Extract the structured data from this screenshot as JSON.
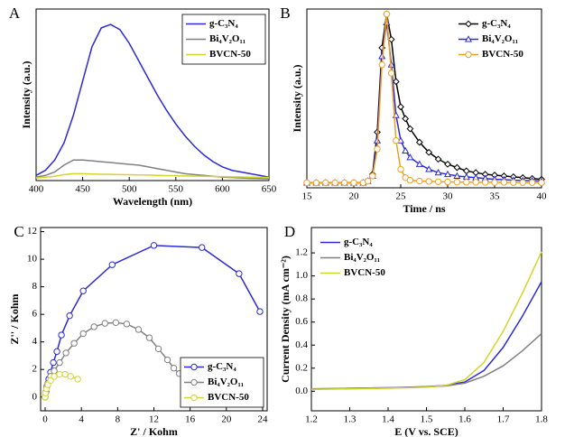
{
  "chart_data": [
    {
      "type": "line",
      "label": "A",
      "xlabel": "Wavelength (nm)",
      "ylabel": "Intensity (a.u.)",
      "xlim": [
        400,
        650
      ],
      "xticks": [
        400,
        450,
        500,
        550,
        600,
        650
      ],
      "ylim": [
        0,
        100
      ],
      "legend": "upper right",
      "legend_frame": true,
      "x": [
        400,
        410,
        420,
        430,
        440,
        450,
        460,
        470,
        480,
        490,
        500,
        510,
        520,
        530,
        540,
        550,
        560,
        570,
        580,
        590,
        600,
        610,
        620,
        630,
        640,
        650
      ],
      "series": [
        {
          "name": "g-C₃N₄",
          "color": "#2a2ad8",
          "values": [
            3,
            6,
            12,
            22,
            38,
            58,
            78,
            89,
            91,
            88,
            80,
            70,
            60,
            50,
            41,
            33,
            26,
            20,
            15,
            11,
            8,
            6,
            5,
            4,
            3,
            2
          ]
        },
        {
          "name": "Bi₄V₂O₁₁",
          "color": "#808080",
          "values": [
            2,
            3,
            5,
            9,
            12,
            12,
            11.5,
            11,
            10.5,
            10,
            9.5,
            9,
            8,
            7,
            6,
            5,
            4,
            3.5,
            3,
            2.5,
            2,
            1.8,
            1.5,
            1.3,
            1.2,
            1
          ]
        },
        {
          "name": "BVCN-50",
          "color": "#d4d42a",
          "values": [
            1.5,
            2,
            2.5,
            3.5,
            4,
            4,
            3.8,
            3.7,
            3.6,
            3.5,
            3.4,
            3.3,
            3.2,
            3,
            2.9,
            2.8,
            2.7,
            2.6,
            2.5,
            2.4,
            2.3,
            2.2,
            2.1,
            2,
            1.9,
            1.8
          ]
        }
      ]
    },
    {
      "type": "line",
      "label": "B",
      "xlabel": "Time / ns",
      "ylabel": "Intensity (a.u.)",
      "xlim": [
        15,
        40
      ],
      "xticks": [
        15,
        20,
        25,
        30,
        35,
        40
      ],
      "ylim": [
        -3,
        103
      ],
      "legend": "upper right",
      "legend_frame": false,
      "x": [
        15,
        16,
        17,
        18,
        19,
        20,
        21,
        21.5,
        22,
        22.5,
        23,
        23.5,
        24,
        24.5,
        25,
        25.5,
        26,
        27,
        28,
        29,
        30,
        31,
        32,
        33,
        34,
        35,
        36,
        37,
        38,
        39,
        40
      ],
      "series": [
        {
          "name": "g-C₃N₄",
          "color": "#000000",
          "marker": "diamond",
          "values": [
            0,
            0,
            0,
            0,
            0,
            0,
            0,
            1,
            5,
            30,
            80,
            100,
            85,
            60,
            45,
            38,
            32,
            24,
            18,
            14,
            11,
            9,
            7,
            6,
            5,
            4.5,
            4,
            3.5,
            3,
            2.5,
            2
          ]
        },
        {
          "name": "Bi₄V₂O₁₁",
          "color": "#2a2ad8",
          "marker": "triangle",
          "values": [
            0,
            0,
            0,
            0,
            0,
            0,
            0,
            1,
            4,
            25,
            75,
            95,
            70,
            40,
            25,
            19,
            15,
            11,
            8,
            6,
            5,
            4,
            3.5,
            3,
            2.5,
            2,
            1.8,
            1.5,
            1.3,
            1.2,
            1
          ]
        },
        {
          "name": "BVCN-50",
          "color": "#f0a020",
          "marker": "circle",
          "values": [
            0,
            0,
            0,
            0,
            0,
            0,
            0,
            1,
            4,
            20,
            70,
            100,
            65,
            25,
            8,
            3,
            1.5,
            1,
            0.8,
            0.6,
            0.5,
            0.4,
            0.3,
            0.3,
            0.2,
            0.2,
            0.2,
            0.1,
            0.1,
            0.1,
            0.1
          ]
        }
      ]
    },
    {
      "type": "scatter",
      "label": "C",
      "xlabel": "Z' / Kohm",
      "ylabel": "Z'' / Kohm",
      "xlim": [
        -0.5,
        24.5
      ],
      "xticks": [
        0,
        4,
        8,
        12,
        16,
        20,
        24
      ],
      "ylim": [
        -1,
        12.3
      ],
      "yticks": [
        0,
        2,
        4,
        6,
        8,
        10,
        12
      ],
      "legend": "lower right",
      "legend_frame": true,
      "series": [
        {
          "name": "g-C₃N₄",
          "color": "#2a2ad8",
          "marker": "circle",
          "x": [
            0,
            0.1,
            0.2,
            0.4,
            0.6,
            0.9,
            1.3,
            1.8,
            2.7,
            4.2,
            7.4,
            12,
            17.3,
            21.4,
            23.7
          ],
          "values": [
            0,
            0.4,
            0.8,
            1.3,
            1.8,
            2.5,
            3.3,
            4.5,
            5.9,
            7.7,
            9.6,
            11,
            10.85,
            8.95,
            6.2
          ]
        },
        {
          "name": "Bi₄V₂O₁₁",
          "color": "#808080",
          "marker": "circle",
          "x": [
            0,
            0.05,
            0.15,
            0.3,
            0.6,
            1,
            1.6,
            2.3,
            3.2,
            4.2,
            5.4,
            6.6,
            7.8,
            9,
            10.3,
            11.5,
            12.5,
            13.5,
            14.2,
            14.8
          ],
          "values": [
            0,
            0.3,
            0.7,
            1,
            1.5,
            1.9,
            2.5,
            3.2,
            3.9,
            4.6,
            5.1,
            5.35,
            5.4,
            5.3,
            4.9,
            4.3,
            3.5,
            2.7,
            2.1,
            1.7
          ]
        },
        {
          "name": "BVCN-50",
          "color": "#d4d42a",
          "marker": "circle",
          "x": [
            0,
            0.05,
            0.15,
            0.3,
            0.6,
            1,
            1.6,
            2.2,
            2.8,
            3.6
          ],
          "values": [
            0,
            0.3,
            0.6,
            0.9,
            1.2,
            1.5,
            1.65,
            1.65,
            1.5,
            1.3
          ]
        }
      ]
    },
    {
      "type": "line",
      "label": "D",
      "xlabel": "E (V vs. SCE)",
      "ylabel": "Current Density (mA cm⁻²)",
      "xlim": [
        1.2,
        1.8
      ],
      "xticks": [
        1.2,
        1.3,
        1.4,
        1.5,
        1.6,
        1.7,
        1.8
      ],
      "ylim": [
        -0.17,
        1.42
      ],
      "yticks": [
        {
          "value": 0,
          "label": "0.0"
        },
        0.2,
        0.4,
        0.6,
        0.8,
        {
          "value": 1,
          "label": "1.0"
        },
        1.2
      ],
      "legend": "upper left",
      "legend_frame": false,
      "x": [
        1.2,
        1.25,
        1.3,
        1.35,
        1.4,
        1.45,
        1.5,
        1.55,
        1.6,
        1.65,
        1.7,
        1.75,
        1.8
      ],
      "series": [
        {
          "name": "g-C₃N₄",
          "color": "#2a2ad8",
          "values": [
            0.02,
            0.022,
            0.025,
            0.028,
            0.03,
            0.035,
            0.04,
            0.05,
            0.08,
            0.18,
            0.38,
            0.65,
            0.95
          ]
        },
        {
          "name": "Bi₄V₂O₁₁",
          "color": "#808080",
          "values": [
            0.02,
            0.022,
            0.025,
            0.028,
            0.03,
            0.033,
            0.038,
            0.045,
            0.07,
            0.13,
            0.22,
            0.35,
            0.5
          ]
        },
        {
          "name": "BVCN-50",
          "color": "#d4d42a",
          "values": [
            0.015,
            0.018,
            0.02,
            0.023,
            0.026,
            0.03,
            0.035,
            0.05,
            0.1,
            0.25,
            0.52,
            0.85,
            1.21
          ]
        }
      ]
    }
  ]
}
